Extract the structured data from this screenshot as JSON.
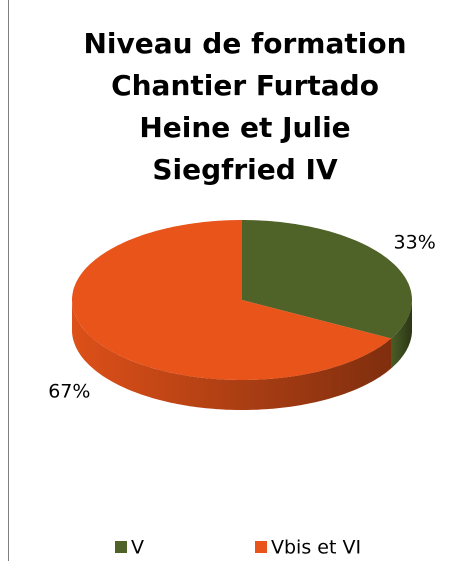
{
  "chart_data": {
    "type": "pie3d",
    "title": [
      "Niveau de formation",
      "Chantier Furtado",
      "Heine et Julie",
      "Siegfried IV"
    ],
    "categories": [
      "V",
      "Vbis et VI"
    ],
    "values": [
      33,
      67
    ],
    "value_labels": [
      "33%",
      "67%"
    ],
    "colors": [
      "#4f6228",
      "#e8541a"
    ],
    "legend": "bottom"
  }
}
